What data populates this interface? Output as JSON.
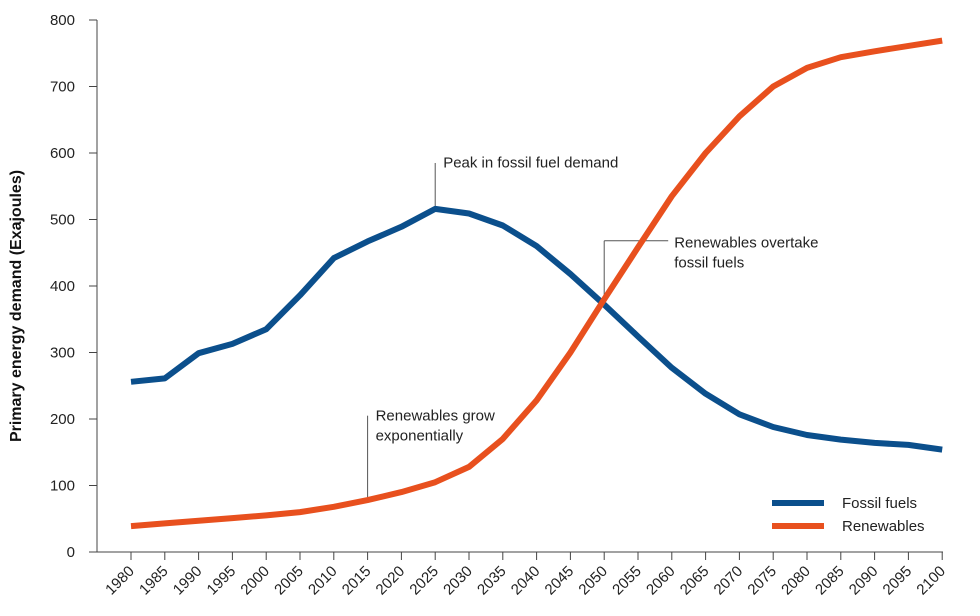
{
  "chart_data": {
    "type": "line",
    "ylabel": "Primary energy demand (Exajoules)",
    "xlabel": "",
    "ylim": [
      0,
      800
    ],
    "yticks": [
      0,
      100,
      200,
      300,
      400,
      500,
      600,
      700,
      800
    ],
    "x": [
      1980,
      1985,
      1990,
      1995,
      2000,
      2005,
      2010,
      2015,
      2020,
      2025,
      2030,
      2035,
      2040,
      2045,
      2050,
      2055,
      2060,
      2065,
      2070,
      2075,
      2080,
      2085,
      2090,
      2095,
      2100
    ],
    "series": [
      {
        "name": "Fossil fuels",
        "color": "#0b4f8c",
        "values": [
          256,
          261,
          299,
          313,
          335,
          386,
          442,
          467,
          489,
          516,
          509,
          491,
          460,
          418,
          372,
          324,
          277,
          238,
          207,
          188,
          176,
          169,
          164,
          161,
          154
        ]
      },
      {
        "name": "Renewables",
        "color": "#e8501e",
        "values": [
          39,
          43,
          47,
          51,
          55,
          60,
          68,
          78,
          90,
          105,
          128,
          170,
          228,
          300,
          380,
          458,
          535,
          600,
          655,
          700,
          728,
          744,
          753,
          761,
          769
        ]
      }
    ],
    "annotations": [
      {
        "text": [
          "Peak in fossil fuel demand"
        ],
        "x": 2025,
        "y": 516
      },
      {
        "text": [
          "Renewables overtake",
          "fossil fuels"
        ],
        "x": 2050,
        "y": 376
      },
      {
        "text": [
          "Renewables grow",
          "exponentially"
        ],
        "x": 2015,
        "y": 78
      }
    ],
    "legend": {
      "placement": "bottom-right"
    },
    "grid": false
  }
}
